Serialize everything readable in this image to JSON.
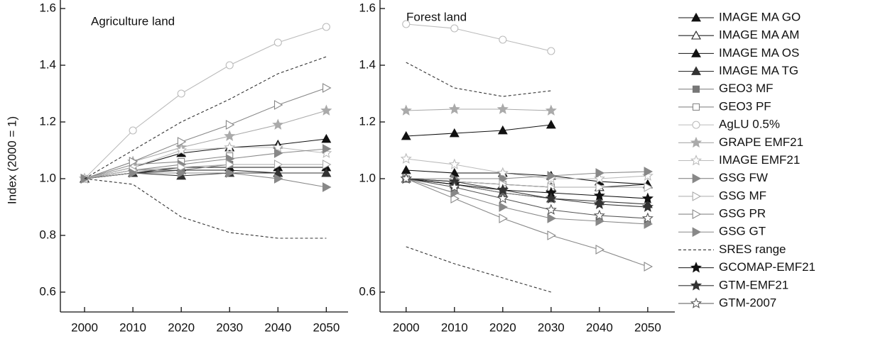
{
  "chart_data": [
    {
      "type": "line",
      "title": "Agriculture land",
      "y_label": "Index (2000 = 1)",
      "x": [
        2000,
        2010,
        2020,
        2030,
        2040,
        2050
      ],
      "xlim": [
        1995,
        2054.5
      ],
      "xticks": [
        2000,
        2010,
        2020,
        2030,
        2040,
        2050
      ],
      "ylim": [
        0.53,
        1.6
      ],
      "yticks": [
        0.6,
        0.8,
        {
          "value": 1.0,
          "label": "1.0"
        },
        1.2,
        1.4,
        1.6
      ],
      "series": [
        {
          "name": "IMAGE MA GO",
          "color": "#111111",
          "marker": "triangle",
          "filled": true,
          "values": [
            1.0,
            1.04,
            1.09,
            1.11,
            1.12,
            1.14
          ]
        },
        {
          "name": "IMAGE MA AM",
          "color": "#222222",
          "marker": "triangle",
          "filled": false,
          "values": [
            1.0,
            1.02,
            1.03,
            1.03,
            1.02,
            1.02
          ]
        },
        {
          "name": "IMAGE MA OS",
          "color": "#111111",
          "marker": "triangle",
          "filled": true,
          "values": [
            1.0,
            1.02,
            1.04,
            1.04,
            1.04,
            1.04
          ]
        },
        {
          "name": "IMAGE MA TG",
          "color": "#333333",
          "marker": "triangle",
          "filled": true,
          "values": [
            1.0,
            1.02,
            1.01,
            1.02,
            1.02,
            1.02
          ]
        },
        {
          "name": "GEO3 MF",
          "color": "#777777",
          "marker": "square",
          "filled": true,
          "values": [
            1.0,
            1.03,
            1.03,
            1.05,
            null,
            null
          ]
        },
        {
          "name": "GEO3 PF",
          "color": "#888888",
          "marker": "square",
          "filled": false,
          "values": [
            1.0,
            1.05,
            1.06,
            1.08,
            null,
            null
          ]
        },
        {
          "name": "AgLU 0.5%",
          "color": "#bbbbbb",
          "marker": "circle",
          "filled": false,
          "values": [
            1.0,
            1.17,
            1.3,
            1.4,
            1.48,
            1.535
          ]
        },
        {
          "name": "GRAPE EMF21",
          "color": "#aaaaaa",
          "marker": "star",
          "filled": true,
          "values": [
            1.0,
            1.06,
            1.11,
            1.15,
            1.19,
            1.24
          ]
        },
        {
          "name": "IMAGE EMF21",
          "color": "#bbbbbb",
          "marker": "star",
          "filled": false,
          "values": [
            1.0,
            1.04,
            1.1,
            1.11,
            1.11,
            1.09
          ]
        },
        {
          "name": "GSG FW",
          "color": "#888888",
          "marker": "triangle-right",
          "filled": true,
          "values": [
            1.0,
            1.03,
            1.05,
            1.07,
            1.09,
            1.105
          ]
        },
        {
          "name": "GSG MF",
          "color": "#aaaaaa",
          "marker": "triangle-right",
          "filled": false,
          "values": [
            1.0,
            1.03,
            1.04,
            1.05,
            1.05,
            1.05
          ]
        },
        {
          "name": "GSG PR",
          "color": "#888888",
          "marker": "triangle-right",
          "filled": false,
          "values": [
            1.0,
            1.06,
            1.13,
            1.19,
            1.26,
            1.32
          ]
        },
        {
          "name": "GSG GT",
          "color": "#888888",
          "marker": "triangle-right",
          "filled": true,
          "values": [
            1.0,
            1.02,
            1.02,
            1.02,
            1.0,
            0.97
          ]
        },
        {
          "name": "SRES range",
          "color": "#333333",
          "dash": true,
          "values": [
            1.0,
            1.1,
            1.2,
            1.28,
            1.37,
            1.43
          ],
          "lower": [
            1.0,
            0.98,
            0.865,
            0.81,
            0.79,
            0.79
          ]
        }
      ]
    },
    {
      "type": "line",
      "title": "Forest land",
      "x": [
        2000,
        2010,
        2020,
        2030,
        2040,
        2050
      ],
      "xlim": [
        1994.6,
        2055.6
      ],
      "xticks": [
        2000,
        2010,
        2020,
        2030,
        2040,
        2050
      ],
      "ylim": [
        0.53,
        1.6
      ],
      "yticks": [
        0.6,
        {
          "value": 1.0,
          "label": "1.0"
        },
        1.2,
        1.4,
        1.6
      ],
      "series": [
        {
          "name": "IMAGE MA GO",
          "color": "#111111",
          "marker": "triangle",
          "filled": true,
          "values": [
            1.15,
            1.16,
            1.17,
            1.19,
            null,
            null
          ]
        },
        {
          "name": "IMAGE MA AM",
          "color": "#222222",
          "marker": "triangle",
          "filled": false,
          "values": [
            1.0,
            0.99,
            0.98,
            0.97,
            0.97,
            0.98
          ]
        },
        {
          "name": "IMAGE MA OS",
          "color": "#111111",
          "marker": "triangle",
          "filled": true,
          "values": [
            1.03,
            1.02,
            1.02,
            1.01,
            0.99,
            0.98
          ]
        },
        {
          "name": "IMAGE MA TG",
          "color": "#333333",
          "marker": "triangle",
          "filled": true,
          "values": [
            1.0,
            0.98,
            0.95,
            0.93,
            0.92,
            0.91
          ]
        },
        {
          "name": "GEO3 MF",
          "color": "#777777",
          "marker": "square",
          "filled": true,
          "values": [
            1.0,
            0.98,
            0.95,
            0.93,
            null,
            null
          ]
        },
        {
          "name": "GEO3 PF",
          "color": "#888888",
          "marker": "square",
          "filled": false,
          "values": [
            1.0,
            0.99,
            0.98,
            0.97,
            null,
            null
          ]
        },
        {
          "name": "AgLU 0.5%",
          "color": "#bbbbbb",
          "marker": "circle",
          "filled": false,
          "values": [
            1.545,
            1.53,
            1.49,
            1.45,
            null,
            null
          ]
        },
        {
          "name": "GRAPE EMF21",
          "color": "#aaaaaa",
          "marker": "star",
          "filled": true,
          "values": [
            1.24,
            1.245,
            1.245,
            1.24,
            null,
            null
          ]
        },
        {
          "name": "IMAGE EMF21",
          "color": "#bbbbbb",
          "marker": "star",
          "filled": false,
          "values": [
            1.07,
            1.05,
            1.02,
            1.0,
            1.0,
            1.01
          ]
        },
        {
          "name": "GSG FW",
          "color": "#888888",
          "marker": "triangle-right",
          "filled": true,
          "values": [
            1.0,
            1.0,
            1.0,
            1.01,
            1.02,
            1.025
          ]
        },
        {
          "name": "GSG MF",
          "color": "#aaaaaa",
          "marker": "triangle-right",
          "filled": false,
          "values": [
            1.0,
            0.99,
            0.98,
            0.97,
            0.97,
            0.97
          ]
        },
        {
          "name": "GSG PR",
          "color": "#888888",
          "marker": "triangle-right",
          "filled": false,
          "values": [
            1.0,
            0.93,
            0.86,
            0.8,
            0.75,
            0.69
          ]
        },
        {
          "name": "GSG GT",
          "color": "#888888",
          "marker": "triangle-right",
          "filled": true,
          "values": [
            1.0,
            0.95,
            0.9,
            0.86,
            0.85,
            0.84
          ]
        },
        {
          "name": "SRES range",
          "color": "#333333",
          "dash": true,
          "values": [
            1.41,
            1.32,
            1.29,
            1.31,
            null,
            null
          ],
          "lower": [
            0.76,
            0.7,
            0.65,
            0.6,
            null,
            null
          ]
        },
        {
          "name": "GCOMAP-EMF21",
          "color": "#111111",
          "marker": "star",
          "filled": true,
          "values": [
            1.0,
            0.98,
            0.96,
            0.95,
            0.94,
            0.93
          ]
        },
        {
          "name": "GTM-EMF21",
          "color": "#333333",
          "marker": "star",
          "filled": true,
          "values": [
            1.0,
            0.99,
            0.96,
            0.93,
            0.91,
            0.9
          ]
        },
        {
          "name": "GTM-2007",
          "color": "#555555",
          "marker": "star",
          "filled": false,
          "values": [
            1.0,
            0.97,
            0.93,
            0.89,
            0.87,
            0.86
          ]
        }
      ]
    }
  ]
}
